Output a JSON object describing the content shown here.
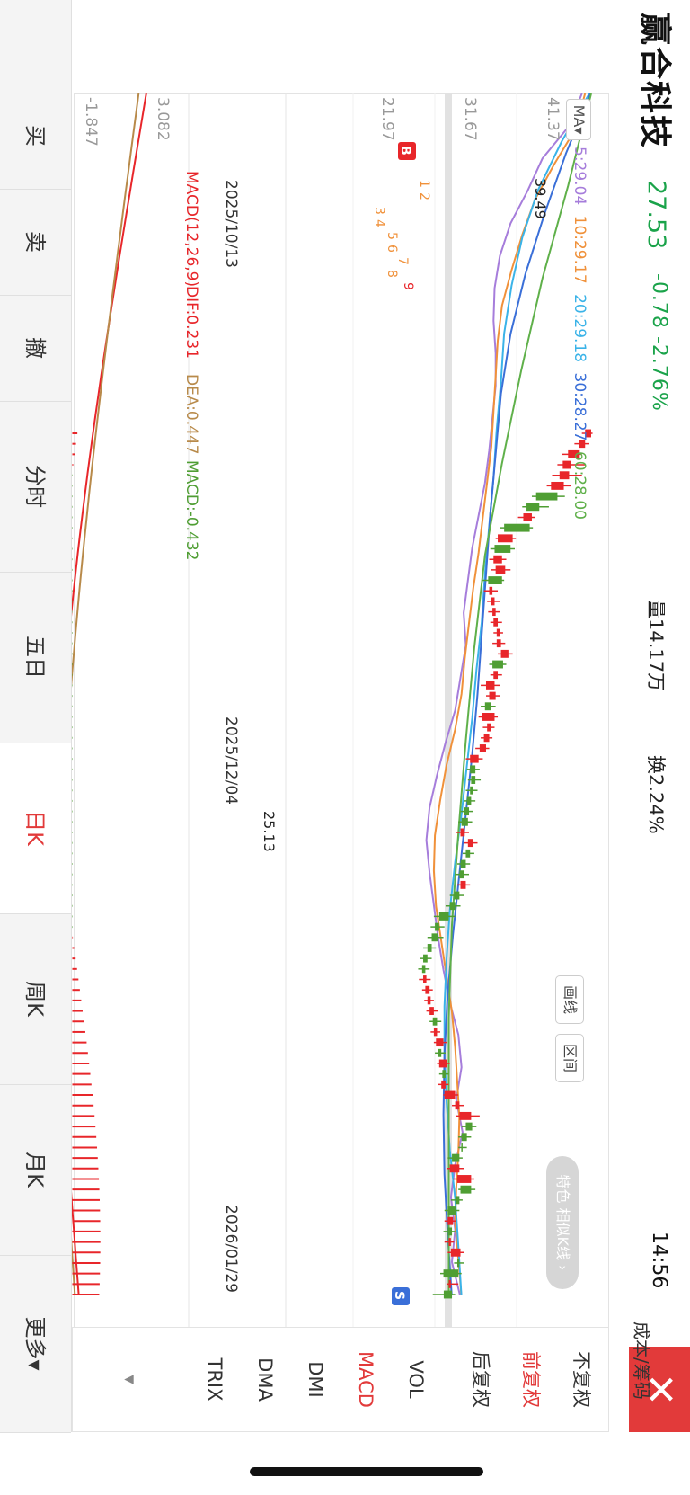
{
  "stock": {
    "name": "赢合科技",
    "price": "27.53",
    "change": "-0.78",
    "change_pct": "-2.76%",
    "volume": "量14.17万",
    "turnover": "换2.24%",
    "clock": "14:56"
  },
  "ma": {
    "badge": "MA▾",
    "items": [
      {
        "label": "5:29.04",
        "color": "#a67ddb"
      },
      {
        "label": "10:29.17",
        "color": "#f0913a"
      },
      {
        "label": "20:29.18",
        "color": "#3ab3e8"
      },
      {
        "label": "30:28.27",
        "color": "#3a6fd8"
      },
      {
        "label": "60:28.00",
        "color": "#5fb04a"
      }
    ]
  },
  "toolbar": {
    "draw_line": "画线",
    "range": "区间",
    "pill": "特色 相似K线 ›"
  },
  "y_axis": {
    "main_top": "41.37",
    "main_mid": "31.67",
    "main_bottom": "21.97",
    "macd_top": "3.082",
    "macd_bottom": "-1.847"
  },
  "x_axis": {
    "dates": [
      "2025/10/13",
      "2025/12/04",
      "2026/01/29"
    ]
  },
  "annotations": {
    "high": "39.49",
    "low": "25.13",
    "buy": "B",
    "sell": "S",
    "seq1": "1",
    "seq2": "2",
    "seq3": "3",
    "seq4": "4",
    "seq5": "5",
    "seq6": "6",
    "seq7": "7",
    "seq8": "8",
    "seq9": "9"
  },
  "macd": {
    "params": "MACD(12,26,9)",
    "dif": "DIF:0.231",
    "dea": "DEA:0.447",
    "macd": "MACD:-0.432"
  },
  "side": {
    "cost_link": "成本/筹码",
    "items": [
      "不复权",
      "前复权",
      "后复权",
      "VOL",
      "MACD",
      "DMI",
      "DMA",
      "TRIX"
    ],
    "more": "▾"
  },
  "tabs": [
    "买",
    "卖",
    "撤",
    "分时",
    "五日",
    "日K",
    "周K",
    "月K",
    "更多▾"
  ],
  "colors": {
    "up": "#e8262a",
    "down": "#4f9e33",
    "accent": "#e23a3a"
  },
  "chart_data": {
    "type": "candlestick",
    "ylim": [
      21.97,
      41.37
    ],
    "x_ticks": [
      "2025/10/13",
      "2025/12/04",
      "2026/01/29"
    ],
    "candles": [
      {
        "o": 40.8,
        "c": 41.37,
        "h": 41.5,
        "l": 40.5
      },
      {
        "o": 40.2,
        "c": 40.8,
        "h": 41.2,
        "l": 39.8
      },
      {
        "o": 39.2,
        "c": 40.3,
        "h": 40.5,
        "l": 38.6
      },
      {
        "o": 38.7,
        "c": 39.5,
        "h": 40.8,
        "l": 38.2
      },
      {
        "o": 38.4,
        "c": 39.3,
        "h": 40.5,
        "l": 37.7
      },
      {
        "o": 37.6,
        "c": 38.8,
        "h": 39.49,
        "l": 37.2
      },
      {
        "o": 38.2,
        "c": 36.2,
        "h": 38.9,
        "l": 35.8
      },
      {
        "o": 36.5,
        "c": 35.3,
        "h": 37.4,
        "l": 34.9
      },
      {
        "o": 35.0,
        "c": 35.8,
        "h": 36.1,
        "l": 34.5
      },
      {
        "o": 35.6,
        "c": 33.2,
        "h": 35.9,
        "l": 32.8
      },
      {
        "o": 32.6,
        "c": 34.0,
        "h": 34.3,
        "l": 32.4
      },
      {
        "o": 33.8,
        "c": 32.3,
        "h": 34.2,
        "l": 31.9
      },
      {
        "o": 32.2,
        "c": 33.0,
        "h": 33.4,
        "l": 31.8
      },
      {
        "o": 32.4,
        "c": 33.3,
        "h": 33.8,
        "l": 32.0
      },
      {
        "o": 33.0,
        "c": 31.7,
        "h": 33.2,
        "l": 31.2
      },
      {
        "o": 31.8,
        "c": 32.1,
        "h": 32.6,
        "l": 31.3
      },
      {
        "o": 32.0,
        "c": 32.3,
        "h": 32.8,
        "l": 31.6
      },
      {
        "o": 32.1,
        "c": 32.4,
        "h": 32.8,
        "l": 31.7
      },
      {
        "o": 32.2,
        "c": 32.6,
        "h": 33.0,
        "l": 31.9
      },
      {
        "o": 32.5,
        "c": 32.8,
        "h": 33.1,
        "l": 32.2
      },
      {
        "o": 32.5,
        "c": 32.9,
        "h": 33.3,
        "l": 32.1
      },
      {
        "o": 32.9,
        "c": 33.6,
        "h": 34.0,
        "l": 32.6
      },
      {
        "o": 33.1,
        "c": 32.1,
        "h": 33.4,
        "l": 31.8
      },
      {
        "o": 32.2,
        "c": 32.6,
        "h": 33.0,
        "l": 31.9
      },
      {
        "o": 31.5,
        "c": 32.3,
        "h": 32.8,
        "l": 31.0
      },
      {
        "o": 31.8,
        "c": 32.4,
        "h": 32.8,
        "l": 31.5
      },
      {
        "o": 32.0,
        "c": 31.4,
        "h": 32.4,
        "l": 31.0
      },
      {
        "o": 31.1,
        "c": 32.3,
        "h": 32.6,
        "l": 30.8
      },
      {
        "o": 31.6,
        "c": 32.0,
        "h": 32.3,
        "l": 31.2
      },
      {
        "o": 31.3,
        "c": 31.8,
        "h": 32.1,
        "l": 31.0
      },
      {
        "o": 30.9,
        "c": 31.5,
        "h": 31.8,
        "l": 30.5
      },
      {
        "o": 30.0,
        "c": 30.8,
        "h": 31.2,
        "l": 29.6
      },
      {
        "o": 30.5,
        "c": 30.0,
        "h": 30.9,
        "l": 29.7
      },
      {
        "o": 30.5,
        "c": 30.1,
        "h": 31.0,
        "l": 29.8
      },
      {
        "o": 30.3,
        "c": 30.0,
        "h": 30.7,
        "l": 29.6
      },
      {
        "o": 30.1,
        "c": 29.7,
        "h": 30.5,
        "l": 29.4
      },
      {
        "o": 29.9,
        "c": 29.4,
        "h": 30.3,
        "l": 29.1
      },
      {
        "o": 29.8,
        "c": 29.2,
        "h": 30.2,
        "l": 28.9
      },
      {
        "o": 29.1,
        "c": 29.5,
        "h": 29.9,
        "l": 28.7
      },
      {
        "o": 29.8,
        "c": 30.3,
        "h": 30.7,
        "l": 29.4
      },
      {
        "o": 30.0,
        "c": 29.6,
        "h": 30.4,
        "l": 29.3
      },
      {
        "o": 29.6,
        "c": 29.1,
        "h": 30.0,
        "l": 28.8
      },
      {
        "o": 29.4,
        "c": 29.0,
        "h": 29.9,
        "l": 28.6
      },
      {
        "o": 29.1,
        "c": 29.6,
        "h": 30.0,
        "l": 28.8
      },
      {
        "o": 29.0,
        "c": 28.5,
        "h": 29.4,
        "l": 28.1
      },
      {
        "o": 28.6,
        "c": 28.1,
        "h": 29.1,
        "l": 27.7
      },
      {
        "o": 28.0,
        "c": 27.1,
        "h": 28.6,
        "l": 26.6
      },
      {
        "o": 27.1,
        "c": 26.7,
        "h": 27.6,
        "l": 26.3
      },
      {
        "o": 27.0,
        "c": 26.4,
        "h": 27.5,
        "l": 26.0
      },
      {
        "o": 26.4,
        "c": 26.0,
        "h": 26.8,
        "l": 25.6
      },
      {
        "o": 26.0,
        "c": 25.6,
        "h": 26.4,
        "l": 25.3
      },
      {
        "o": 25.8,
        "c": 25.5,
        "h": 26.2,
        "l": 25.13
      },
      {
        "o": 25.6,
        "c": 25.9,
        "h": 26.3,
        "l": 25.2
      },
      {
        "o": 25.8,
        "c": 26.2,
        "h": 26.5,
        "l": 25.5
      },
      {
        "o": 26.0,
        "c": 26.3,
        "h": 26.6,
        "l": 25.7
      },
      {
        "o": 26.2,
        "c": 26.6,
        "h": 27.0,
        "l": 25.9
      },
      {
        "o": 26.9,
        "c": 26.5,
        "h": 27.3,
        "l": 26.2
      },
      {
        "o": 26.6,
        "c": 26.9,
        "h": 27.2,
        "l": 26.3
      },
      {
        "o": 26.8,
        "c": 27.5,
        "h": 27.8,
        "l": 26.6
      },
      {
        "o": 27.3,
        "c": 27.0,
        "h": 27.7,
        "l": 26.7
      },
      {
        "o": 27.1,
        "c": 27.8,
        "h": 28.1,
        "l": 26.9
      },
      {
        "o": 27.7,
        "c": 27.4,
        "h": 28.0,
        "l": 27.1
      },
      {
        "o": 27.3,
        "c": 27.7,
        "h": 28.0,
        "l": 27.0
      },
      {
        "o": 27.6,
        "c": 28.6,
        "h": 28.9,
        "l": 27.5
      },
      {
        "o": 28.6,
        "c": 29.0,
        "h": 29.4,
        "l": 28.3
      },
      {
        "o": 29.0,
        "c": 30.1,
        "h": 30.9,
        "l": 28.7
      },
      {
        "o": 30.2,
        "c": 29.6,
        "h": 30.6,
        "l": 29.2
      },
      {
        "o": 29.7,
        "c": 29.2,
        "h": 30.1,
        "l": 28.9
      },
      {
        "o": 29.3,
        "c": 29.2,
        "h": 29.7,
        "l": 28.9
      },
      {
        "o": 29.0,
        "c": 28.3,
        "h": 29.3,
        "l": 27.9
      },
      {
        "o": 28.1,
        "c": 29.0,
        "h": 29.4,
        "l": 27.8
      },
      {
        "o": 28.8,
        "c": 30.1,
        "h": 30.4,
        "l": 28.4
      },
      {
        "o": 30.1,
        "c": 29.1,
        "h": 30.5,
        "l": 28.9
      },
      {
        "o": 29.0,
        "c": 28.6,
        "h": 29.3,
        "l": 28.2
      },
      {
        "o": 28.7,
        "c": 27.9,
        "h": 29.0,
        "l": 27.6
      },
      {
        "o": 27.9,
        "c": 28.4,
        "h": 28.7,
        "l": 27.6
      },
      {
        "o": 28.3,
        "c": 27.9,
        "h": 28.6,
        "l": 27.5
      },
      {
        "o": 28.0,
        "c": 28.2,
        "h": 28.5,
        "l": 27.6
      },
      {
        "o": 28.2,
        "c": 29.1,
        "h": 29.4,
        "l": 27.9
      },
      {
        "o": 29.0,
        "c": 28.8,
        "h": 29.4,
        "l": 28.5
      },
      {
        "o": 28.9,
        "c": 27.5,
        "h": 29.2,
        "l": 27.2
      },
      {
        "o": 28.0,
        "c": 28.2,
        "h": 28.9,
        "l": 27.8
      },
      {
        "o": 28.3,
        "c": 27.53,
        "h": 28.6,
        "l": 26.5
      }
    ],
    "ma_series": [
      {
        "name": "MA5",
        "color": "#a67ddb",
        "values": [
          40.5,
          39.3,
          36.8,
          35.4,
          33.8,
          32.8,
          32.3,
          32.2,
          32.4,
          32.4,
          32.1,
          31.8,
          31.4,
          30.8,
          30.2,
          29.8,
          29.4,
          29.6,
          29.1,
          28.6,
          27.7,
          26.9,
          26.2,
          25.9,
          26.2,
          26.6,
          27.0,
          27.5,
          28.1,
          28.9,
          29.2,
          28.7,
          29.3,
          28.6,
          28.2,
          28.6,
          28.3,
          29.04
        ]
      },
      {
        "name": "MA10",
        "color": "#f0913a",
        "values": [
          40.8,
          39.9,
          37.9,
          36.1,
          34.9,
          33.9,
          33.0,
          32.6,
          32.4,
          32.2,
          32.0,
          31.6,
          31.2,
          30.8,
          30.3,
          29.9,
          29.5,
          29.2,
          28.6,
          27.8,
          27.2,
          26.7,
          26.6,
          26.8,
          27.3,
          27.8,
          28.3,
          28.6,
          28.8,
          29.0,
          28.9,
          28.7,
          28.6,
          28.9,
          29.17
        ]
      },
      {
        "name": "MA20",
        "color": "#3ab3e8",
        "values": [
          41.2,
          38.6,
          36.4,
          34.9,
          33.9,
          33.2,
          32.9,
          32.5,
          32.2,
          31.8,
          31.4,
          31.1,
          30.6,
          30.2,
          29.7,
          29.2,
          28.6,
          28.1,
          27.8,
          27.6,
          27.6,
          27.8,
          28.1,
          28.6,
          28.9,
          29.18
        ]
      },
      {
        "name": "MA30",
        "color": "#3a6fd8",
        "values": [
          41.3,
          39.0,
          37.0,
          35.2,
          33.8,
          32.9,
          32.4,
          31.9,
          31.5,
          31.1,
          30.7,
          30.2,
          29.6,
          29.0,
          28.4,
          27.9,
          27.6,
          27.5,
          27.6,
          27.9,
          28.27
        ]
      },
      {
        "name": "MA60",
        "color": "#5fb04a",
        "values": [
          41.37,
          39.2,
          36.8,
          34.8,
          33.0,
          31.4,
          30.4,
          29.6,
          28.9,
          28.3,
          28.0,
          28.0,
          28.0,
          28.0
        ]
      }
    ],
    "macd": {
      "dif": 0.231,
      "dea": 0.447,
      "macd": -0.432,
      "ylim": [
        -1.847,
        3.082
      ]
    }
  }
}
